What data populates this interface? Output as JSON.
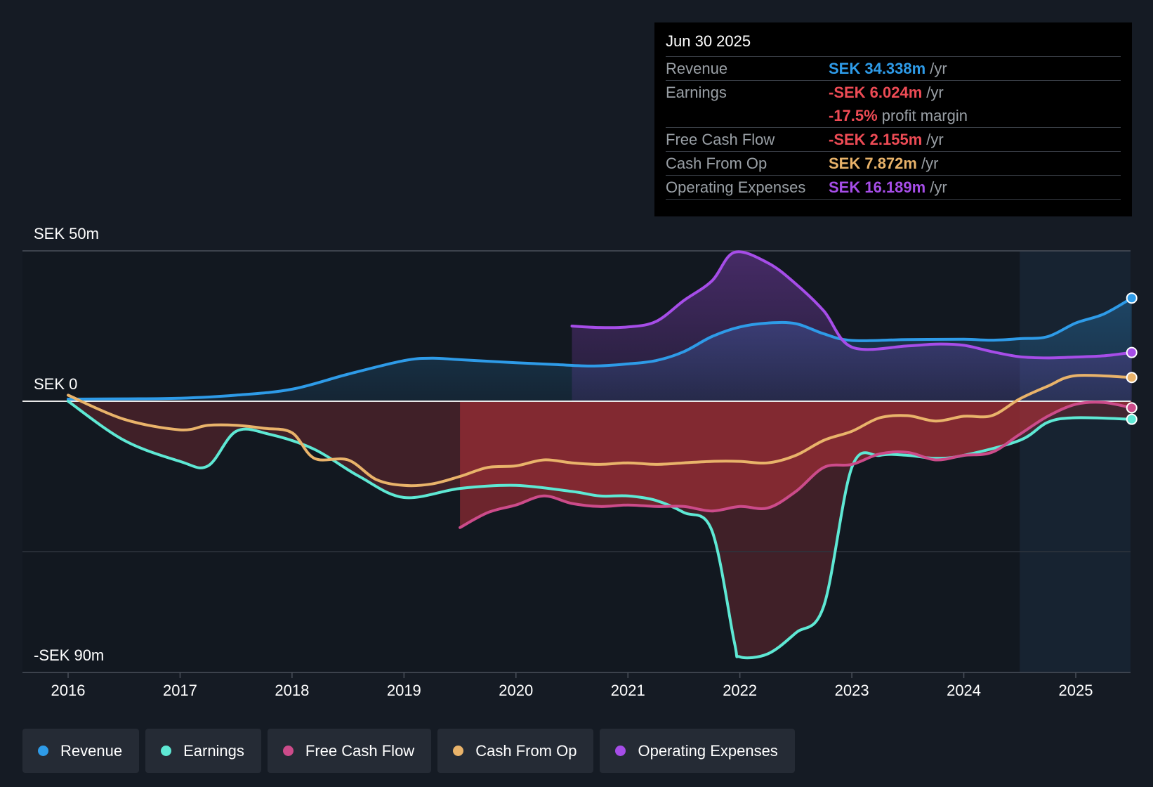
{
  "tooltip": {
    "date": "Jun 30 2025",
    "rows": [
      {
        "label": "Revenue",
        "value": "SEK 34.338m",
        "unit": "/yr",
        "color": "#2e9be8"
      },
      {
        "label": "Earnings",
        "value": "-SEK 6.024m",
        "unit": "/yr",
        "color": "#ee4b55"
      },
      {
        "label": "",
        "value": "-17.5%",
        "unit": "profit margin",
        "color": "#ee4b55"
      },
      {
        "label": "Free Cash Flow",
        "value": "-SEK 2.155m",
        "unit": "/yr",
        "color": "#ee4b55"
      },
      {
        "label": "Cash From Op",
        "value": "SEK 7.872m",
        "unit": "/yr",
        "color": "#e9b36a"
      },
      {
        "label": "Operating Expenses",
        "value": "SEK 16.189m",
        "unit": "/yr",
        "color": "#a64de8"
      }
    ]
  },
  "legend": [
    {
      "label": "Revenue",
      "color": "#2e9be8"
    },
    {
      "label": "Earnings",
      "color": "#5ee8d4"
    },
    {
      "label": "Free Cash Flow",
      "color": "#cc4b8a"
    },
    {
      "label": "Cash From Op",
      "color": "#e9b36a"
    },
    {
      "label": "Operating Expenses",
      "color": "#a64de8"
    }
  ],
  "chart_data": {
    "type": "line",
    "title": "",
    "xlabel": "",
    "ylabel": "",
    "ylim": [
      -90,
      50
    ],
    "y_labels": {
      "top": "SEK 50m",
      "zero": "SEK 0",
      "bottom": "-SEK 90m"
    },
    "x_ticks": [
      "2016",
      "2017",
      "2018",
      "2019",
      "2020",
      "2021",
      "2022",
      "2023",
      "2024",
      "2025"
    ],
    "x_range": [
      2015.6,
      2025.5
    ],
    "forecast_start": 2024.5,
    "series": [
      {
        "name": "Revenue",
        "color": "#2e9be8",
        "x": [
          2016,
          2016.5,
          2017,
          2017.5,
          2018,
          2018.5,
          2019,
          2019.25,
          2019.5,
          2020,
          2020.35,
          2020.7,
          2021,
          2021.25,
          2021.5,
          2021.75,
          2022,
          2022.25,
          2022.5,
          2022.75,
          2023,
          2023.5,
          2024,
          2024.25,
          2024.5,
          2024.75,
          2025,
          2025.25,
          2025.5
        ],
        "y": [
          0.7,
          0.8,
          1.0,
          2.0,
          4.0,
          9.0,
          13.5,
          14.3,
          13.8,
          12.8,
          12.2,
          11.7,
          12.4,
          13.5,
          16.5,
          21.5,
          24.7,
          26.0,
          25.8,
          22.4,
          20.2,
          20.5,
          20.6,
          20.3,
          20.8,
          21.5,
          26.0,
          29.0,
          34.3
        ]
      },
      {
        "name": "Earnings",
        "color": "#5ee8d4",
        "x": [
          2016,
          2016.5,
          2017,
          2017.25,
          2017.5,
          2017.8,
          2018.2,
          2018.6,
          2019,
          2019.5,
          2020,
          2020.5,
          2020.75,
          2021,
          2021.25,
          2021.5,
          2021.75,
          2021.95,
          2022,
          2022.25,
          2022.5,
          2022.75,
          2023,
          2023.25,
          2023.5,
          2023.75,
          2024,
          2024.5,
          2024.75,
          2025,
          2025.5
        ],
        "y": [
          0,
          -13,
          -20,
          -21.5,
          -10,
          -11,
          -16,
          -25,
          -32,
          -29,
          -28,
          -30,
          -31.5,
          -31.5,
          -33,
          -37,
          -43,
          -80,
          -85,
          -84,
          -77,
          -68,
          -22,
          -18,
          -18,
          -19,
          -18,
          -13,
          -7,
          -5.5,
          -6.0
        ]
      },
      {
        "name": "Free Cash Flow",
        "color": "#cc4b8a",
        "x": [
          2019.5,
          2019.75,
          2020,
          2020.25,
          2020.5,
          2020.75,
          2021,
          2021.25,
          2021.5,
          2021.75,
          2022,
          2022.25,
          2022.5,
          2022.75,
          2023,
          2023.25,
          2023.5,
          2023.75,
          2024,
          2024.25,
          2024.5,
          2024.75,
          2025,
          2025.25,
          2025.5
        ],
        "y": [
          -42,
          -37,
          -34.5,
          -31.5,
          -34,
          -35,
          -34.5,
          -35,
          -35,
          -36.5,
          -35,
          -35.5,
          -30,
          -22,
          -21,
          -17.5,
          -17,
          -19.5,
          -18,
          -17,
          -11,
          -5,
          -1,
          -0.4,
          -2.2
        ]
      },
      {
        "name": "Cash From Op",
        "color": "#e9b36a",
        "x": [
          2016,
          2016.5,
          2017,
          2017.25,
          2017.5,
          2017.75,
          2018,
          2018.2,
          2018.5,
          2018.75,
          2019,
          2019.25,
          2019.5,
          2019.75,
          2020,
          2020.25,
          2020.5,
          2020.75,
          2021,
          2021.25,
          2021.5,
          2021.75,
          2022,
          2022.25,
          2022.5,
          2022.75,
          2023,
          2023.25,
          2023.5,
          2023.75,
          2024,
          2024.25,
          2024.5,
          2024.75,
          2025,
          2025.5
        ],
        "y": [
          2,
          -6,
          -9.5,
          -8,
          -8,
          -9,
          -10.5,
          -19,
          -19.5,
          -26,
          -28,
          -27.5,
          -25,
          -22,
          -21.5,
          -19.5,
          -20.5,
          -21,
          -20.5,
          -21,
          -20.5,
          -20,
          -20,
          -20.5,
          -18,
          -13,
          -10,
          -5.5,
          -4.8,
          -6.6,
          -5,
          -4.8,
          0.8,
          5,
          8.5,
          7.9
        ]
      },
      {
        "name": "Operating Expenses",
        "color": "#a64de8",
        "x": [
          2020.5,
          2020.75,
          2021,
          2021.25,
          2021.5,
          2021.75,
          2021.95,
          2022.25,
          2022.5,
          2022.75,
          2023,
          2023.5,
          2023.75,
          2024,
          2024.25,
          2024.5,
          2024.75,
          2025,
          2025.25,
          2025.5
        ],
        "y": [
          25,
          24.5,
          24.7,
          26.5,
          33.5,
          40,
          49.5,
          46,
          39,
          30,
          18,
          18.4,
          19,
          18.6,
          16.5,
          14.8,
          14.4,
          14.7,
          15.1,
          16.2
        ]
      }
    ]
  }
}
